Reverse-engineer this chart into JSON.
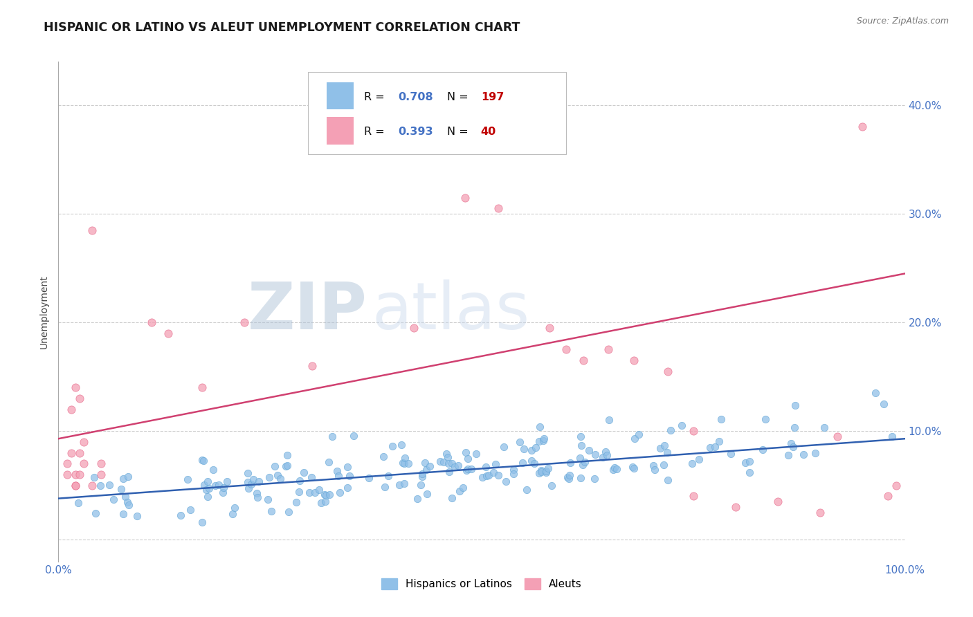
{
  "title": "HISPANIC OR LATINO VS ALEUT UNEMPLOYMENT CORRELATION CHART",
  "source": "Source: ZipAtlas.com",
  "ylabel": "Unemployment",
  "xlim": [
    0,
    1.0
  ],
  "ylim": [
    -0.02,
    0.44
  ],
  "blue_color": "#90C0E8",
  "blue_edge_color": "#6AAAD8",
  "pink_color": "#F4A0B5",
  "pink_edge_color": "#E87090",
  "blue_line_color": "#3060B0",
  "pink_line_color": "#D04070",
  "r_blue": 0.708,
  "n_blue": 197,
  "r_pink": 0.393,
  "n_pink": 40,
  "legend_r_color": "#4472C4",
  "legend_n_color": "#C00000",
  "watermark_zip_color": "#B8C8DC",
  "watermark_atlas_color": "#C8D8EC",
  "blue_trend_x": [
    0.0,
    1.0
  ],
  "blue_trend_y": [
    0.038,
    0.093
  ],
  "pink_trend_x": [
    0.0,
    1.0
  ],
  "pink_trend_y": [
    0.093,
    0.245
  ]
}
